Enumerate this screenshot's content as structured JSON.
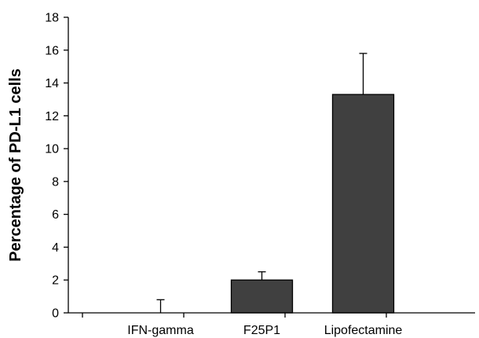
{
  "chart_data": {
    "type": "bar",
    "title": "",
    "xlabel": "",
    "ylabel": "Percentage of PD-L1 cells",
    "categories": [
      "IFN-gamma",
      "F25P1",
      "Lipofectamine"
    ],
    "values": [
      0,
      2.0,
      13.3
    ],
    "error_upper": [
      0.8,
      2.5,
      15.8
    ],
    "ylim": [
      0,
      18
    ],
    "yticks": [
      "0",
      "2",
      "4",
      "6",
      "8",
      "10",
      "12",
      "14",
      "16",
      "18"
    ],
    "bar_color": "#404040",
    "grid": false,
    "legend": "none"
  }
}
